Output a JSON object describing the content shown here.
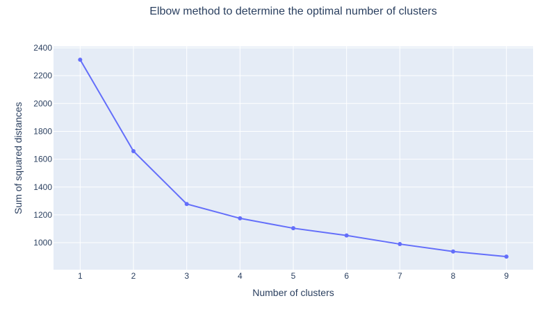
{
  "chart_data": {
    "type": "line",
    "title": "Elbow method to determine the optimal number of clusters",
    "xlabel": "Number of clusters",
    "ylabel": "Sum of squared distances",
    "x": [
      1,
      2,
      3,
      4,
      5,
      6,
      7,
      8,
      9
    ],
    "series": [
      {
        "values": [
          2315,
          1658,
          1278,
          1175,
          1104,
          1052,
          990,
          937,
          900
        ]
      }
    ],
    "xticks": [
      "1",
      "2",
      "3",
      "4",
      "5",
      "6",
      "7",
      "8",
      "9"
    ],
    "yticks": [
      "1000",
      "1200",
      "1400",
      "1600",
      "1800",
      "2000",
      "2200",
      "2400"
    ],
    "xlim": [
      0.5,
      9.5
    ],
    "ylim": [
      806,
      2410
    ],
    "grid": true,
    "legend": "none",
    "markers": true,
    "colors": {
      "line": "#636efa",
      "plot_background": "#e5ecf6",
      "grid": "#ffffff",
      "text": "#2a3f5f"
    }
  }
}
